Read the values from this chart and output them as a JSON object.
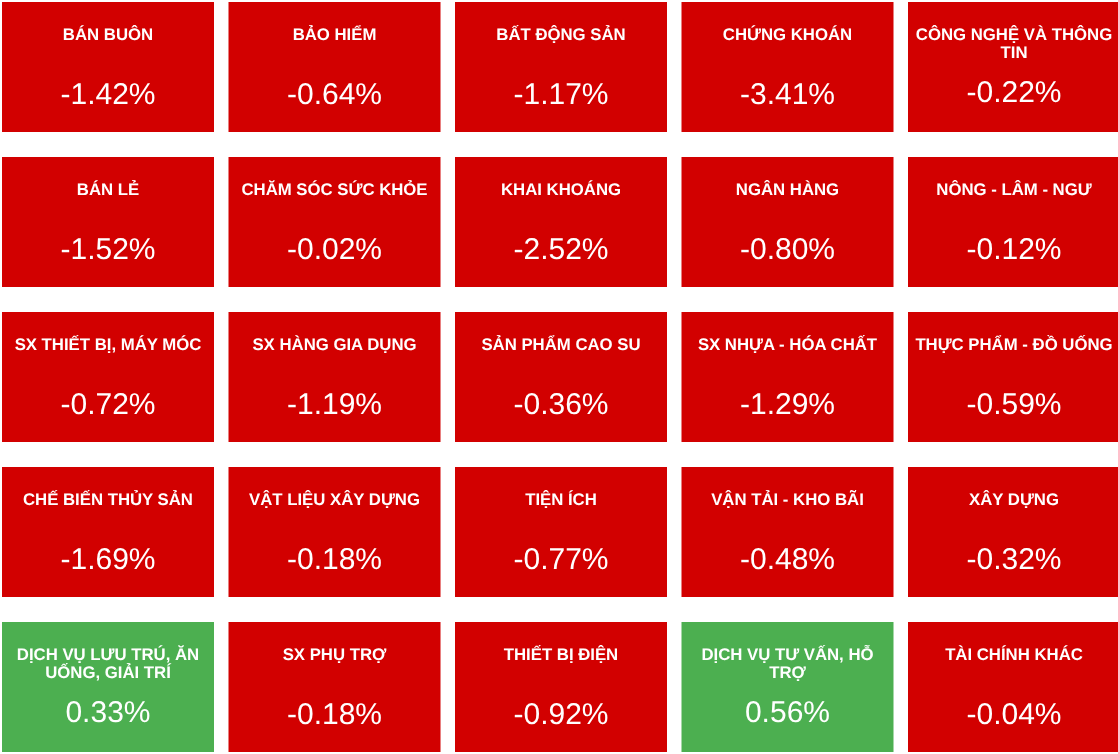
{
  "chart_data": {
    "type": "other",
    "categories": [
      "BÁN BUÔN",
      "BẢO HIỂM",
      "BẤT ĐỘNG SẢN",
      "CHỨNG KHOÁN",
      "CÔNG NGHỆ VÀ THÔNG TIN",
      "BÁN LẺ",
      "CHĂM SÓC SỨC KHỎE",
      "KHAI KHOÁNG",
      "NGÂN HÀNG",
      "NÔNG - LÂM - NGƯ",
      "SX THIẾT BỊ, MÁY MÓC",
      "SX HÀNG GIA DỤNG",
      "SẢN PHẨM CAO SU",
      "SX NHỰA - HÓA CHẤT",
      "THỰC PHẨM - ĐỒ UỐNG",
      "CHẾ BIẾN THỦY SẢN",
      "VẬT LIỆU XÂY DỰNG",
      "TIỆN ÍCH",
      "VẬN TẢI - KHO BÃI",
      "XÂY DỰNG",
      "DỊCH VỤ LƯU TRÚ, ĂN UỐNG, GIẢI TRÍ",
      "SX PHỤ TRỢ",
      "THIẾT BỊ ĐIỆN",
      "DỊCH VỤ TƯ VẤN, HỖ TRỢ",
      "TÀI CHÍNH KHÁC"
    ],
    "values": [
      -1.42,
      -0.64,
      -1.17,
      -3.41,
      -0.22,
      -1.52,
      -0.02,
      -2.52,
      -0.8,
      -0.12,
      -0.72,
      -1.19,
      -0.36,
      -1.29,
      -0.59,
      -1.69,
      -0.18,
      -0.77,
      -0.48,
      -0.32,
      0.33,
      -0.18,
      -0.92,
      0.56,
      -0.04
    ],
    "value_labels": [
      "-1.42%",
      "-0.64%",
      "-1.17%",
      "-3.41%",
      "-0.22%",
      "-1.52%",
      "-0.02%",
      "-2.52%",
      "-0.80%",
      "-0.12%",
      "-0.72%",
      "-1.19%",
      "-0.36%",
      "-1.29%",
      "-0.59%",
      "-1.69%",
      "-0.18%",
      "-0.77%",
      "-0.48%",
      "-0.32%",
      "0.33%",
      "-0.18%",
      "-0.92%",
      "0.56%",
      "-0.04%"
    ],
    "colors": [
      "#d20000",
      "#d20000",
      "#d20000",
      "#d20000",
      "#d20000",
      "#d20000",
      "#d20000",
      "#d20000",
      "#d20000",
      "#d20000",
      "#d20000",
      "#d20000",
      "#d20000",
      "#d20000",
      "#d20000",
      "#d20000",
      "#d20000",
      "#d20000",
      "#d20000",
      "#d20000",
      "#4caf50",
      "#d20000",
      "#d20000",
      "#4caf50",
      "#d20000"
    ]
  }
}
